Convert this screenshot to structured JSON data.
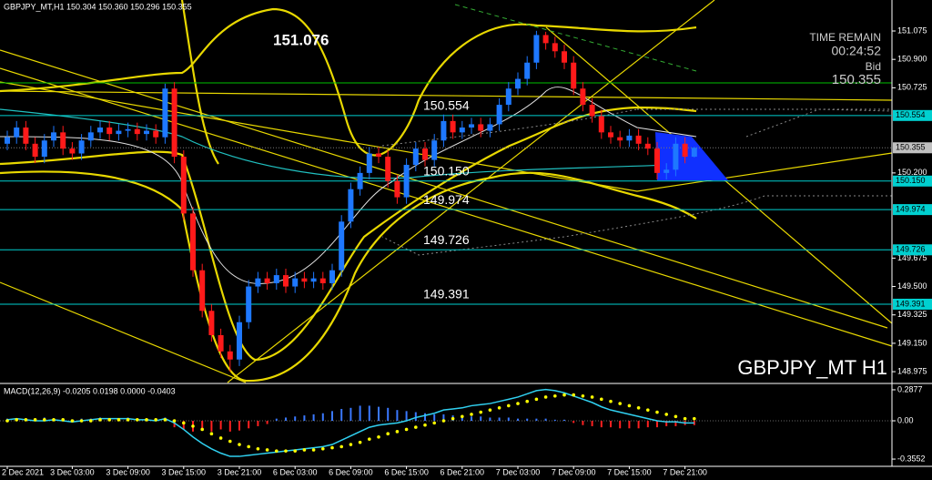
{
  "chart_data": {
    "type": "candlestick",
    "title": "GBPJPY_MT,H1  150.304 150.360 150.296 150.355",
    "watermark": "GBPJPY_MT H1",
    "annotation": "151.076",
    "time_remain_label": "TIME REMAIN",
    "time_remain": "00:24:52",
    "bid_label": "Bid",
    "bid": 150.355,
    "up_color": "#1e78ff",
    "down_color": "#ff1a1a",
    "level_color": "#00d0d0",
    "categories": [
      "2 Dec 2021",
      null,
      null,
      null,
      null,
      null,
      null,
      "3 Dec 03:00",
      null,
      null,
      null,
      null,
      null,
      "3 Dec 09:00",
      null,
      null,
      null,
      null,
      null,
      "3 Dec 15:00",
      null,
      null,
      null,
      null,
      null,
      "3 Dec 21:00",
      null,
      null,
      null,
      null,
      null,
      "6 Dec 03:00",
      null,
      null,
      null,
      null,
      null,
      "6 Dec 09:00",
      null,
      null,
      null,
      null,
      null,
      "6 Dec 15:00",
      null,
      null,
      null,
      null,
      null,
      "6 Dec 21:00",
      null,
      null,
      null,
      null,
      null,
      "7 Dec 03:00",
      null,
      null,
      null,
      null,
      null,
      "7 Dec 09:00",
      null,
      null,
      null,
      null,
      null,
      "7 Dec 15:00",
      null,
      null,
      null,
      null,
      null,
      "7 Dec 21:00",
      null
    ],
    "open": [
      150.38,
      150.42,
      150.48,
      150.38,
      150.3,
      150.4,
      150.45,
      150.35,
      150.32,
      150.4,
      150.45,
      150.48,
      150.44,
      150.46,
      150.47,
      150.44,
      150.46,
      150.42,
      150.72,
      150.3,
      149.95,
      149.6,
      149.35,
      149.2,
      149.1,
      149.05,
      149.28,
      149.5,
      149.55,
      149.52,
      149.57,
      149.5,
      149.55,
      149.53,
      149.55,
      149.52,
      149.6,
      149.9,
      150.1,
      150.2,
      150.32,
      150.3,
      150.15,
      150.05,
      150.25,
      150.35,
      150.28,
      150.4,
      150.52,
      150.45,
      150.48,
      150.5,
      150.46,
      150.5,
      150.62,
      150.72,
      150.78,
      150.88,
      151.05,
      151.0,
      150.95,
      150.88,
      150.72,
      150.62,
      150.55,
      150.45,
      150.42,
      150.4,
      150.43,
      150.38,
      150.35,
      150.2,
      150.22,
      150.38,
      150.3
    ],
    "high": [
      150.46,
      150.52,
      150.52,
      150.42,
      150.44,
      150.49,
      150.49,
      150.39,
      150.44,
      150.49,
      150.52,
      150.52,
      150.5,
      150.51,
      150.51,
      150.5,
      150.5,
      150.75,
      150.76,
      150.34,
      149.99,
      149.64,
      149.39,
      149.24,
      149.14,
      149.32,
      149.54,
      149.59,
      149.59,
      149.61,
      149.61,
      149.59,
      149.59,
      149.59,
      149.59,
      149.64,
      149.94,
      150.14,
      150.24,
      150.36,
      150.36,
      150.34,
      150.19,
      150.29,
      150.39,
      150.39,
      150.44,
      150.56,
      150.56,
      150.52,
      150.54,
      150.54,
      150.54,
      150.66,
      150.76,
      150.82,
      150.92,
      151.076,
      151.07,
      151.04,
      150.99,
      150.92,
      150.76,
      150.66,
      150.59,
      150.49,
      150.46,
      150.47,
      150.47,
      150.42,
      150.39,
      150.26,
      150.42,
      150.42,
      150.36
    ],
    "low": [
      150.34,
      150.38,
      150.34,
      150.26,
      150.26,
      150.36,
      150.31,
      150.28,
      150.28,
      150.36,
      150.41,
      150.4,
      150.4,
      150.42,
      150.4,
      150.4,
      150.38,
      150.38,
      150.26,
      149.91,
      149.56,
      149.31,
      149.16,
      149.06,
      148.975,
      149.01,
      149.24,
      149.46,
      149.48,
      149.48,
      149.46,
      149.46,
      149.49,
      149.49,
      149.48,
      149.48,
      149.56,
      149.86,
      150.06,
      150.16,
      150.26,
      150.11,
      150.01,
      150.01,
      150.21,
      150.24,
      150.24,
      150.36,
      150.41,
      150.41,
      150.44,
      150.42,
      150.42,
      150.46,
      150.58,
      150.68,
      150.74,
      150.84,
      150.96,
      150.91,
      150.84,
      150.68,
      150.58,
      150.51,
      150.41,
      150.38,
      150.36,
      150.36,
      150.34,
      150.31,
      150.16,
      150.16,
      150.18,
      150.26,
      150.296
    ],
    "close": [
      150.42,
      150.48,
      150.38,
      150.3,
      150.4,
      150.45,
      150.35,
      150.32,
      150.4,
      150.45,
      150.48,
      150.44,
      150.46,
      150.47,
      150.44,
      150.46,
      150.42,
      150.72,
      150.3,
      149.95,
      149.6,
      149.35,
      149.2,
      149.1,
      149.05,
      149.28,
      149.5,
      149.55,
      149.52,
      149.57,
      149.5,
      149.55,
      149.53,
      149.55,
      149.52,
      149.6,
      149.9,
      150.1,
      150.2,
      150.32,
      150.3,
      150.15,
      150.05,
      150.25,
      150.35,
      150.28,
      150.4,
      150.52,
      150.45,
      150.48,
      150.5,
      150.46,
      150.5,
      150.62,
      150.72,
      150.78,
      150.88,
      151.05,
      151.0,
      150.95,
      150.88,
      150.72,
      150.62,
      150.55,
      150.45,
      150.42,
      150.4,
      150.43,
      150.38,
      150.35,
      150.2,
      150.22,
      150.38,
      150.3,
      150.355
    ],
    "ylim": [
      148.908,
      151.266
    ],
    "yticks": [
      151.075,
      {
        "value": 150.9,
        "label": "150.900"
      },
      150.725,
      {
        "value": 150.2,
        "label": "150.200"
      },
      149.675,
      {
        "value": 149.5,
        "label": "149.500"
      },
      149.325,
      {
        "value": 149.15,
        "label": "149.150"
      },
      148.975
    ],
    "levels": [
      150.554,
      150.15,
      149.974,
      149.726,
      149.391
    ],
    "level_labels": [
      "150.554",
      "150.150",
      "149.974",
      "149.726",
      "149.391"
    ],
    "macd": {
      "title": "MACD(12,26,9) -0.0205 0.0198 0.0000 -0.0403",
      "ylim": [
        -0.414,
        0.338
      ],
      "yticks": [
        0.2877,
        {
          "value": 0,
          "label": "0.00"
        },
        -0.3552
      ],
      "line_color": "#30d0f0",
      "signal_color": "#ffff00",
      "up_color": "#3a78ff",
      "down_color": "#ff2020",
      "main": [
        0.01,
        0.02,
        0.01,
        0.0,
        0.0,
        0.01,
        0.0,
        -0.01,
        0.0,
        0.01,
        0.02,
        0.02,
        0.02,
        0.02,
        0.01,
        0.01,
        0.0,
        0.02,
        -0.02,
        -0.08,
        -0.15,
        -0.21,
        -0.26,
        -0.3,
        -0.33,
        -0.33,
        -0.32,
        -0.31,
        -0.3,
        -0.29,
        -0.28,
        -0.27,
        -0.26,
        -0.25,
        -0.24,
        -0.22,
        -0.18,
        -0.14,
        -0.1,
        -0.06,
        -0.04,
        -0.03,
        -0.02,
        0.0,
        0.03,
        0.05,
        0.07,
        0.1,
        0.11,
        0.12,
        0.14,
        0.15,
        0.16,
        0.18,
        0.2,
        0.22,
        0.25,
        0.28,
        0.29,
        0.28,
        0.26,
        0.23,
        0.2,
        0.17,
        0.13,
        0.1,
        0.08,
        0.06,
        0.04,
        0.02,
        0.0,
        -0.01,
        -0.01,
        -0.02,
        -0.0205
      ],
      "signal": [
        0.0,
        0.01,
        0.01,
        0.01,
        0.01,
        0.01,
        0.01,
        0.0,
        0.0,
        0.0,
        0.01,
        0.01,
        0.01,
        0.01,
        0.01,
        0.01,
        0.01,
        0.01,
        0.0,
        -0.02,
        -0.05,
        -0.08,
        -0.12,
        -0.16,
        -0.19,
        -0.22,
        -0.24,
        -0.26,
        -0.27,
        -0.28,
        -0.28,
        -0.28,
        -0.27,
        -0.27,
        -0.26,
        -0.25,
        -0.24,
        -0.22,
        -0.2,
        -0.17,
        -0.15,
        -0.12,
        -0.1,
        -0.08,
        -0.06,
        -0.04,
        -0.02,
        0.0,
        0.02,
        0.04,
        0.06,
        0.08,
        0.1,
        0.12,
        0.14,
        0.16,
        0.18,
        0.2,
        0.22,
        0.23,
        0.24,
        0.24,
        0.23,
        0.22,
        0.2,
        0.18,
        0.16,
        0.14,
        0.12,
        0.1,
        0.08,
        0.06,
        0.04,
        0.02,
        0.0198
      ],
      "histogram": [
        0.02,
        0.02,
        0.01,
        0.02,
        0.03,
        0.02,
        0.02,
        0.01,
        0.02,
        0.02,
        0.03,
        0.02,
        0.02,
        0.03,
        0.02,
        0.02,
        0.02,
        0.03,
        -0.06,
        -0.08,
        -0.1,
        -0.09,
        -0.1,
        -0.08,
        -0.1,
        -0.09,
        -0.07,
        -0.05,
        -0.03,
        0.02,
        0.03,
        0.04,
        0.05,
        0.06,
        0.07,
        0.09,
        0.11,
        0.12,
        0.14,
        0.14,
        0.13,
        0.12,
        0.1,
        0.09,
        0.08,
        0.07,
        0.06,
        0.06,
        0.05,
        0.05,
        0.04,
        0.04,
        0.03,
        0.03,
        0.03,
        0.02,
        0.02,
        0.02,
        0.02,
        0.01,
        0.01,
        -0.02,
        -0.04,
        -0.05,
        -0.06,
        -0.06,
        -0.07,
        -0.07,
        -0.07,
        -0.06,
        -0.06,
        -0.05,
        -0.05,
        -0.04,
        -0.0403
      ]
    }
  }
}
